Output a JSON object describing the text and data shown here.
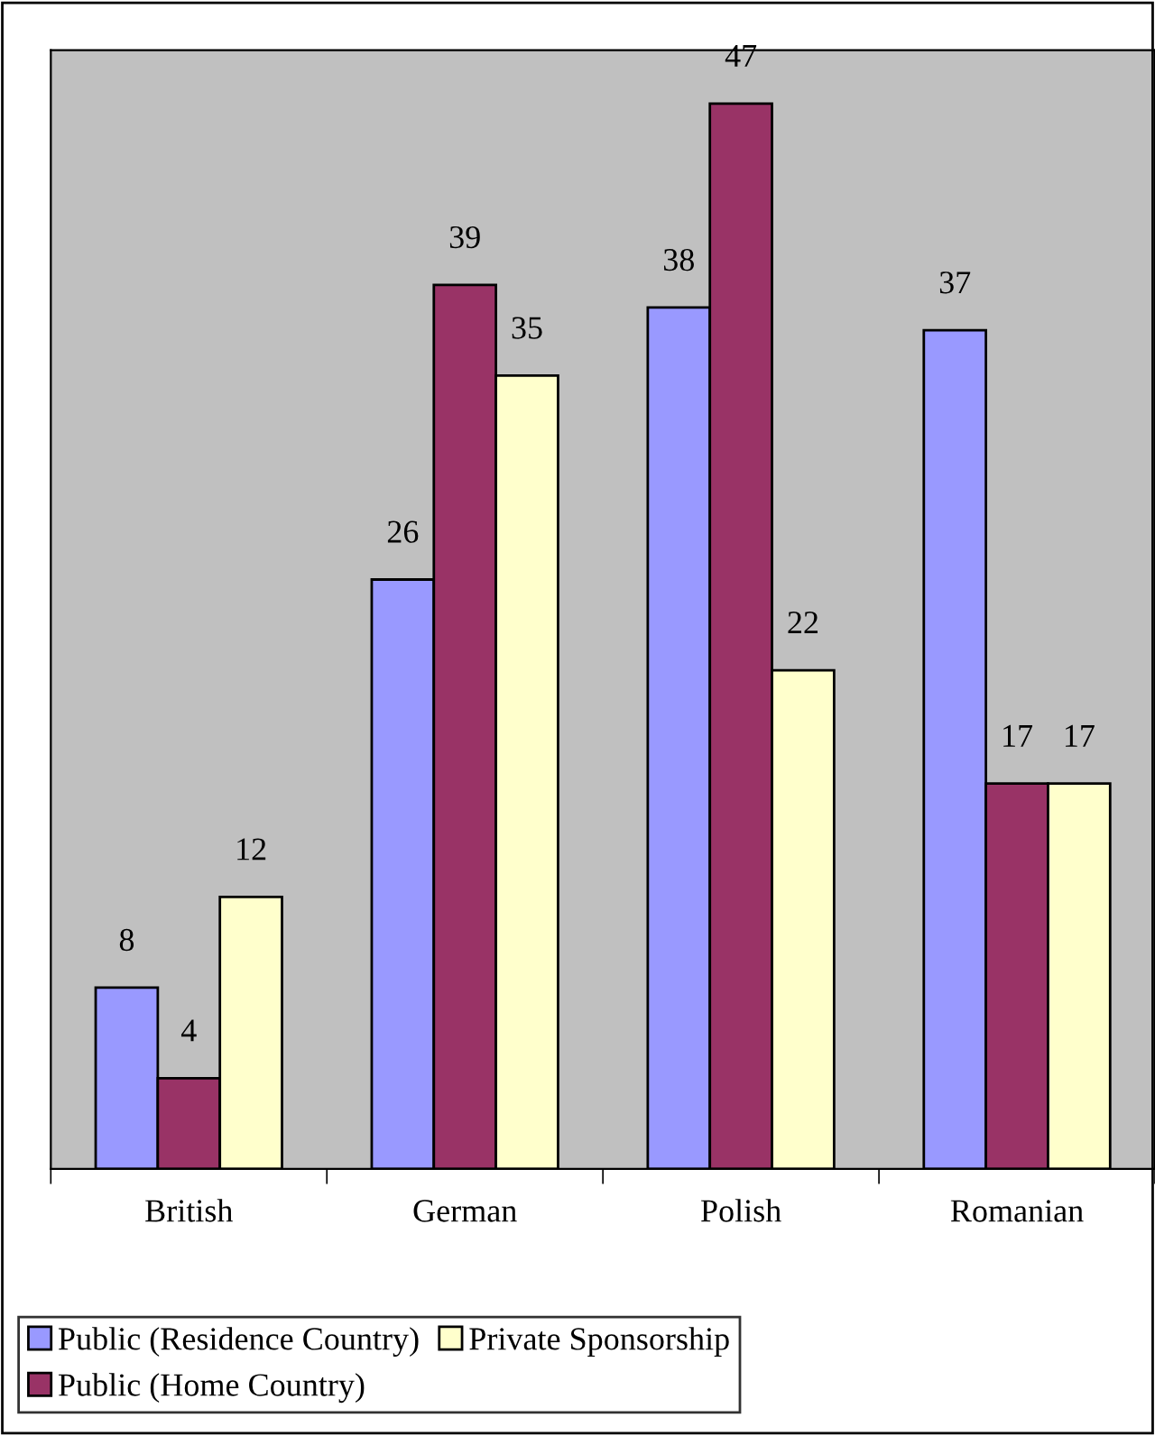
{
  "chart_data": {
    "type": "bar",
    "categories": [
      "British",
      "German",
      "Polish",
      "Romanian"
    ],
    "series": [
      {
        "name": "Public (Residence Country)",
        "color": "#9999ff",
        "values": [
          8,
          26,
          38,
          37
        ]
      },
      {
        "name": "Public (Home Country)",
        "color": "#993366",
        "values": [
          4,
          39,
          47,
          17
        ]
      },
      {
        "name": "Private Sponsorship",
        "color": "#ffffcc",
        "values": [
          12,
          35,
          22,
          17
        ]
      }
    ],
    "data_labels": true,
    "legend": "bottom",
    "grid": false
  }
}
